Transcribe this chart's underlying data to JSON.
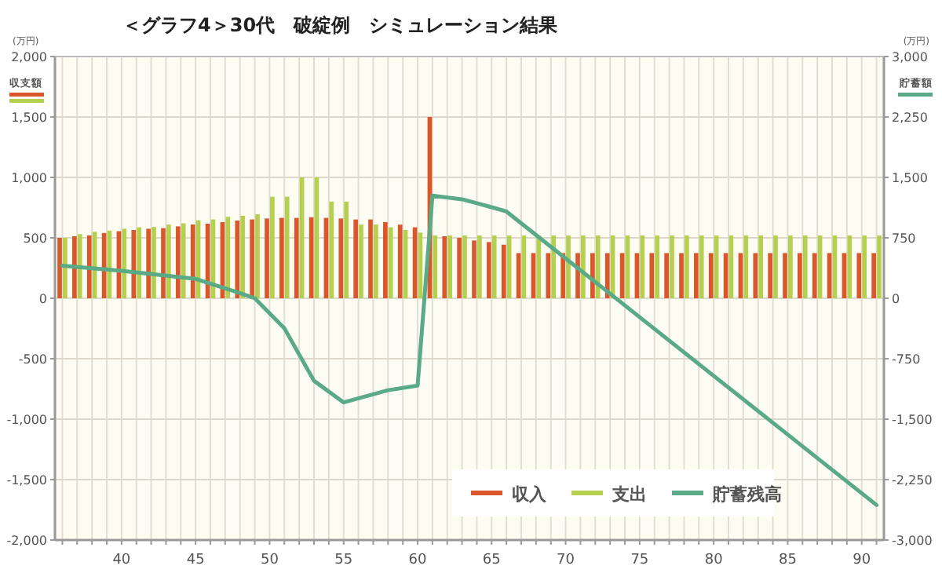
{
  "chart_data": {
    "type": "bar",
    "title": "＜グラフ4＞30代　破綻例　シミュレーション結果",
    "ylabel": "(万円)",
    "y2label": "(万円)",
    "annotations": [
      "収支額",
      "貯蓄額"
    ],
    "x": [
      36,
      37,
      38,
      39,
      40,
      41,
      42,
      43,
      44,
      45,
      46,
      47,
      48,
      49,
      50,
      51,
      52,
      53,
      54,
      55,
      56,
      57,
      58,
      59,
      60,
      61,
      62,
      63,
      64,
      65,
      66,
      67,
      68,
      69,
      70,
      71,
      72,
      73,
      74,
      75,
      76,
      77,
      78,
      79,
      80,
      81,
      82,
      83,
      84,
      85,
      86,
      87,
      88,
      89,
      90,
      91
    ],
    "series": [
      {
        "name": "収入",
        "color": "#d9572b",
        "values": [
          500,
          513,
          520,
          540,
          555,
          565,
          575,
          580,
          595,
          610,
          617,
          630,
          643,
          652,
          660,
          665,
          665,
          670,
          665,
          660,
          652,
          652,
          630,
          609,
          587,
          1500,
          513,
          500,
          478,
          465,
          443,
          374,
          374,
          374,
          374,
          374,
          374,
          374,
          374,
          374,
          374,
          374,
          374,
          374,
          374,
          374,
          374,
          374,
          374,
          374,
          374,
          374,
          374,
          374,
          374,
          374
        ]
      },
      {
        "name": "支出",
        "color": "#b5cf4f",
        "values": [
          500,
          530,
          550,
          560,
          575,
          587,
          590,
          610,
          620,
          645,
          652,
          674,
          683,
          695,
          840,
          840,
          1000,
          1000,
          800,
          800,
          610,
          610,
          587,
          565,
          543,
          520,
          520,
          520,
          520,
          520,
          520,
          520,
          520,
          520,
          520,
          520,
          520,
          520,
          520,
          520,
          520,
          520,
          520,
          520,
          520,
          520,
          520,
          520,
          520,
          520,
          520,
          520,
          520,
          520,
          520,
          520
        ]
      },
      {
        "name": "貯蓄残高",
        "type": "line",
        "axis": "y2",
        "color": "#5aaa87",
        "x": [
          36,
          40,
          45,
          48,
          49,
          51,
          53,
          55,
          58,
          60,
          61,
          63,
          64,
          65,
          66,
          91
        ],
        "values": [
          405,
          340,
          241,
          65,
          0,
          -372,
          -1024,
          -1292,
          -1141,
          -1083,
          1273,
          1228,
          1180,
          1130,
          1077,
          -2565
        ]
      }
    ],
    "xlim": [
      35.5,
      91.5
    ],
    "xticks": [
      {
        "value": 36,
        "label": null
      },
      {
        "value": 37,
        "label": null
      },
      {
        "value": 38,
        "label": null
      },
      {
        "value": 39,
        "label": null
      },
      40,
      {
        "value": 41,
        "label": null
      },
      {
        "value": 42,
        "label": null
      },
      {
        "value": 43,
        "label": null
      },
      {
        "value": 44,
        "label": null
      },
      45,
      {
        "value": 46,
        "label": null
      },
      {
        "value": 47,
        "label": null
      },
      {
        "value": 48,
        "label": null
      },
      {
        "value": 49,
        "label": null
      },
      50,
      {
        "value": 51,
        "label": null
      },
      {
        "value": 52,
        "label": null
      },
      {
        "value": 53,
        "label": null
      },
      {
        "value": 54,
        "label": null
      },
      55,
      {
        "value": 56,
        "label": null
      },
      {
        "value": 57,
        "label": null
      },
      {
        "value": 58,
        "label": null
      },
      {
        "value": 59,
        "label": null
      },
      60,
      {
        "value": 61,
        "label": null
      },
      {
        "value": 62,
        "label": null
      },
      {
        "value": 63,
        "label": null
      },
      {
        "value": 64,
        "label": null
      },
      65,
      {
        "value": 66,
        "label": null
      },
      {
        "value": 67,
        "label": null
      },
      {
        "value": 68,
        "label": null
      },
      {
        "value": 69,
        "label": null
      },
      70,
      {
        "value": 71,
        "label": null
      },
      {
        "value": 72,
        "label": null
      },
      {
        "value": 73,
        "label": null
      },
      {
        "value": 74,
        "label": null
      },
      75,
      {
        "value": 76,
        "label": null
      },
      {
        "value": 77,
        "label": null
      },
      {
        "value": 78,
        "label": null
      },
      {
        "value": 79,
        "label": null
      },
      80,
      {
        "value": 81,
        "label": null
      },
      {
        "value": 82,
        "label": null
      },
      {
        "value": 83,
        "label": null
      },
      {
        "value": 84,
        "label": null
      },
      85,
      {
        "value": 86,
        "label": null
      },
      {
        "value": 87,
        "label": null
      },
      {
        "value": 88,
        "label": null
      },
      {
        "value": 89,
        "label": null
      },
      90,
      {
        "value": 91,
        "label": null
      }
    ],
    "ylim": [
      -2000,
      2000
    ],
    "yticks": [
      {
        "value": -2000,
        "label": "-2,000"
      },
      {
        "value": -1500,
        "label": "-1,500"
      },
      {
        "value": -1000,
        "label": "-1,000"
      },
      -500,
      0,
      500,
      {
        "value": 1000,
        "label": "1,000"
      },
      {
        "value": 1500,
        "label": "1,500"
      },
      {
        "value": 2000,
        "label": "2,000"
      }
    ],
    "y2lim": [
      -3000,
      3000
    ],
    "y2ticks": [
      {
        "value": -3000,
        "label": "-3,000"
      },
      {
        "value": -2250,
        "label": "-2,250"
      },
      {
        "value": -1500,
        "label": "-1,500"
      },
      -750,
      0,
      750,
      {
        "value": 1500,
        "label": "1,500"
      },
      {
        "value": 2250,
        "label": "2,250"
      },
      {
        "value": 3000,
        "label": "3,000"
      }
    ],
    "grid": true,
    "legend": "bottom right"
  }
}
